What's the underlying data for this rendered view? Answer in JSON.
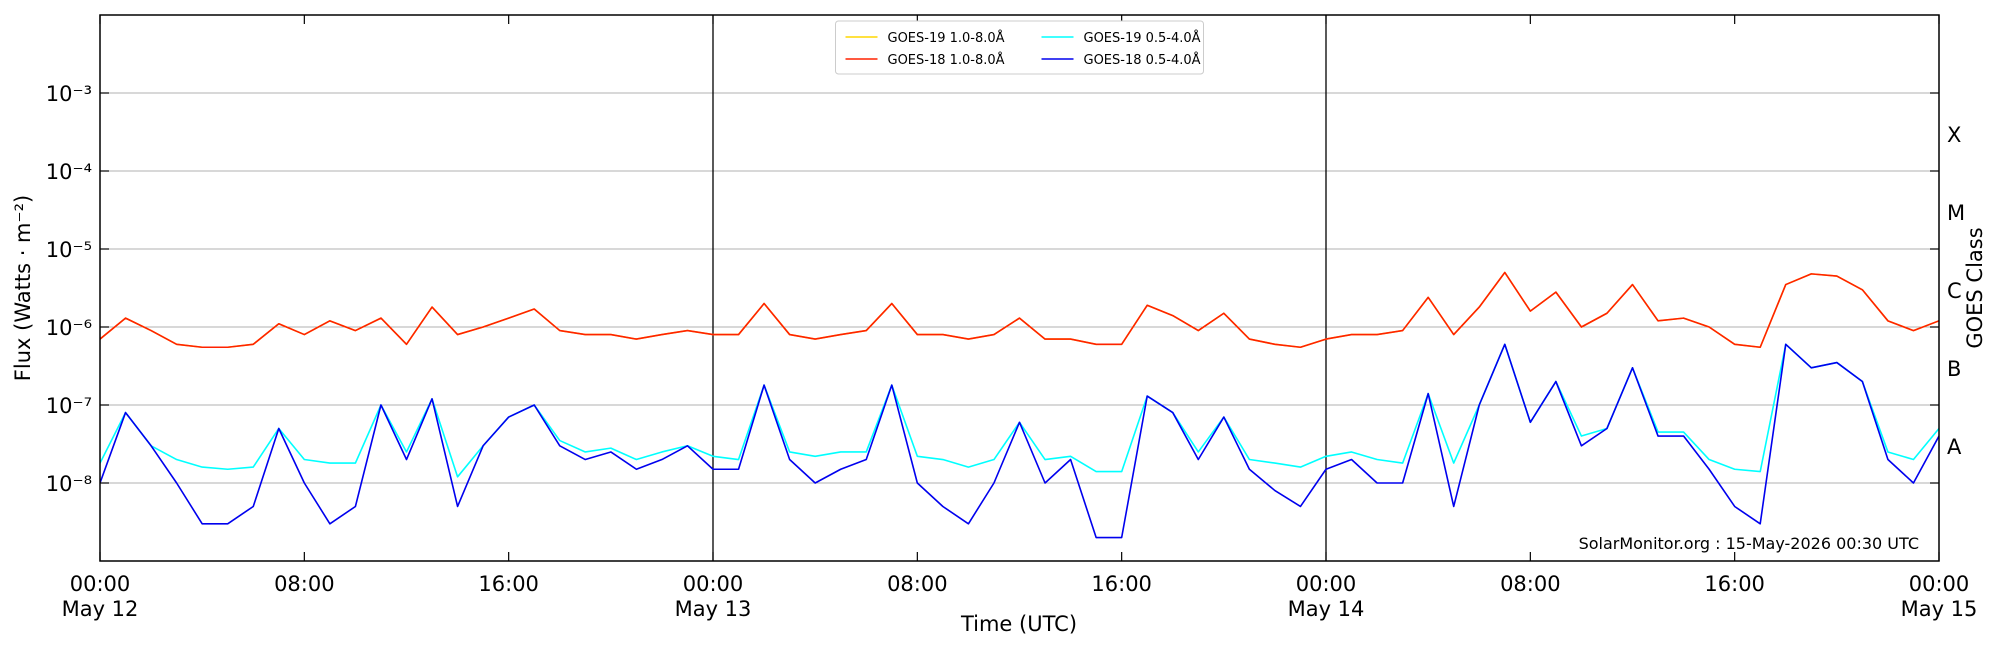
{
  "chart_data": {
    "type": "line",
    "xlabel": "Time (UTC)",
    "ylabel": "Flux (Watts · m⁻²)",
    "y2label": "GOES Class",
    "annotation": "SolarMonitor.org : 15-May-2026 00:30 UTC",
    "log_y": true,
    "grid": "y",
    "legend": "upper center",
    "ylim": [
      1e-09,
      0.01
    ],
    "yticks": [
      {
        "value": 1e-08,
        "label": "10⁻⁸"
      },
      {
        "value": 1e-07,
        "label": "10⁻⁷"
      },
      {
        "value": 1e-06,
        "label": "10⁻⁶"
      },
      {
        "value": 1e-05,
        "label": "10⁻⁵"
      },
      {
        "value": 0.0001,
        "label": "10⁻⁴"
      },
      {
        "value": 0.001,
        "label": "10⁻³"
      }
    ],
    "y2ticks": [
      {
        "value": 3e-08,
        "label": "A"
      },
      {
        "value": 3e-07,
        "label": "B"
      },
      {
        "value": 3e-06,
        "label": "C"
      },
      {
        "value": 3e-05,
        "label": "M"
      },
      {
        "value": 0.0003,
        "label": "X"
      }
    ],
    "xlim": [
      0,
      72
    ],
    "xticks": [
      {
        "value": 0,
        "label": "00:00",
        "date": "May 12"
      },
      {
        "value": 8,
        "label": "08:00"
      },
      {
        "value": 16,
        "label": "16:00"
      },
      {
        "value": 24,
        "label": "00:00",
        "date": "May 13"
      },
      {
        "value": 32,
        "label": "08:00"
      },
      {
        "value": 40,
        "label": "16:00"
      },
      {
        "value": 48,
        "label": "00:00",
        "date": "May 14"
      },
      {
        "value": 56,
        "label": "08:00"
      },
      {
        "value": 64,
        "label": "16:00"
      },
      {
        "value": 72,
        "label": "00:00",
        "date": "May 15"
      }
    ],
    "vlines": [
      24,
      48
    ],
    "x": [
      0,
      1,
      2,
      3,
      4,
      5,
      6,
      7,
      8,
      9,
      10,
      11,
      12,
      13,
      14,
      15,
      16,
      17,
      18,
      19,
      20,
      21,
      22,
      23,
      24,
      25,
      26,
      27,
      28,
      29,
      30,
      31,
      32,
      33,
      34,
      35,
      36,
      37,
      38,
      39,
      40,
      41,
      42,
      43,
      44,
      45,
      46,
      47,
      48,
      49,
      50,
      51,
      52,
      53,
      54,
      55,
      56,
      57,
      58,
      59,
      60,
      61,
      62,
      63,
      64,
      65,
      66,
      67,
      68,
      69,
      70,
      71,
      72
    ],
    "series": [
      {
        "name": "GOES-19 1.0-8.0Å",
        "color": "#ffd700",
        "values": [
          7e-07,
          1.3e-06,
          9e-07,
          6e-07,
          5.5e-07,
          5.5e-07,
          6e-07,
          1.1e-06,
          8e-07,
          1.2e-06,
          9e-07,
          1.3e-06,
          6e-07,
          1.8e-06,
          8e-07,
          1e-06,
          1.3e-06,
          1.7e-06,
          9e-07,
          8e-07,
          8e-07,
          7e-07,
          8e-07,
          9e-07,
          8e-07,
          8e-07,
          2e-06,
          8e-07,
          7e-07,
          8e-07,
          9e-07,
          2e-06,
          8e-07,
          8e-07,
          7e-07,
          8e-07,
          1.3e-06,
          7e-07,
          7e-07,
          6e-07,
          6e-07,
          1.9e-06,
          1.4e-06,
          9e-07,
          1.5e-06,
          7e-07,
          6e-07,
          5.5e-07,
          7e-07,
          8e-07,
          8e-07,
          9e-07,
          2.4e-06,
          8e-07,
          1.8e-06,
          5e-06,
          1.6e-06,
          2.8e-06,
          1e-06,
          1.5e-06,
          3.5e-06,
          1.2e-06,
          1.3e-06,
          1e-06,
          6e-07,
          5.5e-07,
          3.5e-06,
          4.8e-06,
          4.5e-06,
          3e-06,
          1.2e-06,
          9e-07,
          1.2e-06
        ]
      },
      {
        "name": "GOES-18 1.0-8.0Å",
        "color": "#ff2200",
        "values": [
          7e-07,
          1.3e-06,
          9e-07,
          6e-07,
          5.5e-07,
          5.5e-07,
          6e-07,
          1.1e-06,
          8e-07,
          1.2e-06,
          9e-07,
          1.3e-06,
          6e-07,
          1.8e-06,
          8e-07,
          1e-06,
          1.3e-06,
          1.7e-06,
          9e-07,
          8e-07,
          8e-07,
          7e-07,
          8e-07,
          9e-07,
          8e-07,
          8e-07,
          2e-06,
          8e-07,
          7e-07,
          8e-07,
          9e-07,
          2e-06,
          8e-07,
          8e-07,
          7e-07,
          8e-07,
          1.3e-06,
          7e-07,
          7e-07,
          6e-07,
          6e-07,
          1.9e-06,
          1.4e-06,
          9e-07,
          1.5e-06,
          7e-07,
          6e-07,
          5.5e-07,
          7e-07,
          8e-07,
          8e-07,
          9e-07,
          2.4e-06,
          8e-07,
          1.8e-06,
          5e-06,
          1.6e-06,
          2.8e-06,
          1e-06,
          1.5e-06,
          3.5e-06,
          1.2e-06,
          1.3e-06,
          1e-06,
          6e-07,
          5.5e-07,
          3.5e-06,
          4.8e-06,
          4.5e-06,
          3e-06,
          1.2e-06,
          9e-07,
          1.2e-06
        ]
      },
      {
        "name": "GOES-19 0.5-4.0Å",
        "color": "#00ffff",
        "values": [
          1.8e-08,
          8e-08,
          3e-08,
          2e-08,
          1.6e-08,
          1.5e-08,
          1.6e-08,
          5e-08,
          2e-08,
          1.8e-08,
          1.8e-08,
          1e-07,
          2.5e-08,
          1.2e-07,
          1.2e-08,
          3e-08,
          7e-08,
          1e-07,
          3.5e-08,
          2.5e-08,
          2.8e-08,
          2e-08,
          2.5e-08,
          3e-08,
          2.2e-08,
          2e-08,
          1.8e-07,
          2.5e-08,
          2.2e-08,
          2.5e-08,
          2.5e-08,
          1.8e-07,
          2.2e-08,
          2e-08,
          1.6e-08,
          2e-08,
          6e-08,
          2e-08,
          2.2e-08,
          1.4e-08,
          1.4e-08,
          1.3e-07,
          8e-08,
          2.5e-08,
          7e-08,
          2e-08,
          1.8e-08,
          1.6e-08,
          2.2e-08,
          2.5e-08,
          2e-08,
          1.8e-08,
          1.4e-07,
          1.8e-08,
          1e-07,
          6e-07,
          6e-08,
          2e-07,
          4e-08,
          5e-08,
          3e-07,
          4.5e-08,
          4.5e-08,
          2e-08,
          1.5e-08,
          1.4e-08,
          6e-07,
          3e-07,
          3.5e-07,
          2e-07,
          2.5e-08,
          2e-08,
          5e-08
        ]
      },
      {
        "name": "GOES-18 0.5-4.0Å",
        "color": "#0000ee",
        "values": [
          1e-08,
          8e-08,
          3e-08,
          1e-08,
          3e-09,
          3e-09,
          5e-09,
          5e-08,
          1e-08,
          3e-09,
          5e-09,
          1e-07,
          2e-08,
          1.2e-07,
          5e-09,
          3e-08,
          7e-08,
          1e-07,
          3e-08,
          2e-08,
          2.5e-08,
          1.5e-08,
          2e-08,
          3e-08,
          1.5e-08,
          1.5e-08,
          1.8e-07,
          2e-08,
          1e-08,
          1.5e-08,
          2e-08,
          1.8e-07,
          1e-08,
          5e-09,
          3e-09,
          1e-08,
          6e-08,
          1e-08,
          2e-08,
          2e-09,
          2e-09,
          1.3e-07,
          8e-08,
          2e-08,
          7e-08,
          1.5e-08,
          8e-09,
          5e-09,
          1.5e-08,
          2e-08,
          1e-08,
          1e-08,
          1.4e-07,
          5e-09,
          1e-07,
          6e-07,
          6e-08,
          2e-07,
          3e-08,
          5e-08,
          3e-07,
          4e-08,
          4e-08,
          1.5e-08,
          5e-09,
          3e-09,
          6e-07,
          3e-07,
          3.5e-07,
          2e-07,
          2e-08,
          1e-08,
          4e-08
        ]
      }
    ]
  }
}
